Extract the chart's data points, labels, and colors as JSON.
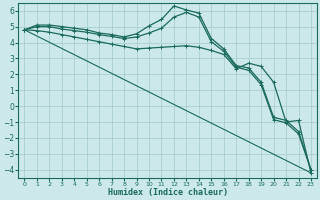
{
  "title": "",
  "xlabel": "Humidex (Indice chaleur)",
  "bg_color": "#cce8e8",
  "grid_color": "#b0d4d4",
  "line_color": "#1a6b5a",
  "xlim": [
    -0.5,
    23.5
  ],
  "ylim": [
    -4.5,
    6.5
  ],
  "xticks": [
    0,
    1,
    2,
    3,
    4,
    5,
    6,
    7,
    8,
    9,
    10,
    11,
    12,
    13,
    14,
    15,
    16,
    17,
    18,
    19,
    20,
    21,
    22,
    23
  ],
  "yticks": [
    -4,
    -3,
    -2,
    -1,
    0,
    1,
    2,
    3,
    4,
    5,
    6
  ],
  "series": [
    {
      "x": [
        0,
        1,
        2,
        3,
        4,
        5,
        6,
        7,
        8,
        9,
        10,
        11,
        12,
        13,
        14,
        15,
        16,
        17,
        18,
        19,
        20,
        21,
        22,
        23
      ],
      "y": [
        4.8,
        5.1,
        5.1,
        5.0,
        4.9,
        4.8,
        4.6,
        4.5,
        4.35,
        4.55,
        5.05,
        5.45,
        6.3,
        6.05,
        5.85,
        4.25,
        3.6,
        2.55,
        2.4,
        1.5,
        -0.7,
        -0.9,
        -1.6,
        -4.0
      ],
      "marker": "+",
      "lw": 0.9
    },
    {
      "x": [
        0,
        1,
        2,
        3,
        4,
        5,
        6,
        7,
        8,
        9,
        10,
        11,
        12,
        13,
        14,
        15,
        16,
        17,
        18,
        19,
        20,
        21,
        22,
        23
      ],
      "y": [
        4.8,
        5.0,
        5.0,
        4.85,
        4.75,
        4.65,
        4.5,
        4.38,
        4.25,
        4.35,
        4.6,
        4.9,
        5.6,
        5.9,
        5.6,
        4.05,
        3.45,
        2.45,
        2.25,
        1.35,
        -0.85,
        -1.05,
        -1.75,
        -4.0
      ],
      "marker": "+",
      "lw": 0.9
    },
    {
      "x": [
        0,
        1,
        2,
        3,
        4,
        5,
        6,
        7,
        8,
        9,
        10,
        11,
        12,
        13,
        14,
        15,
        16,
        17,
        18,
        19,
        20,
        21,
        22,
        23
      ],
      "y": [
        4.8,
        4.75,
        4.65,
        4.5,
        4.35,
        4.2,
        4.05,
        3.9,
        3.75,
        3.6,
        3.65,
        3.7,
        3.75,
        3.8,
        3.7,
        3.5,
        3.25,
        2.35,
        2.7,
        2.5,
        1.5,
        -1.0,
        -0.9,
        -4.2
      ],
      "marker": "+",
      "lw": 0.9
    },
    {
      "x": [
        0,
        23
      ],
      "y": [
        4.8,
        -4.2
      ],
      "marker": null,
      "lw": 0.8
    }
  ]
}
